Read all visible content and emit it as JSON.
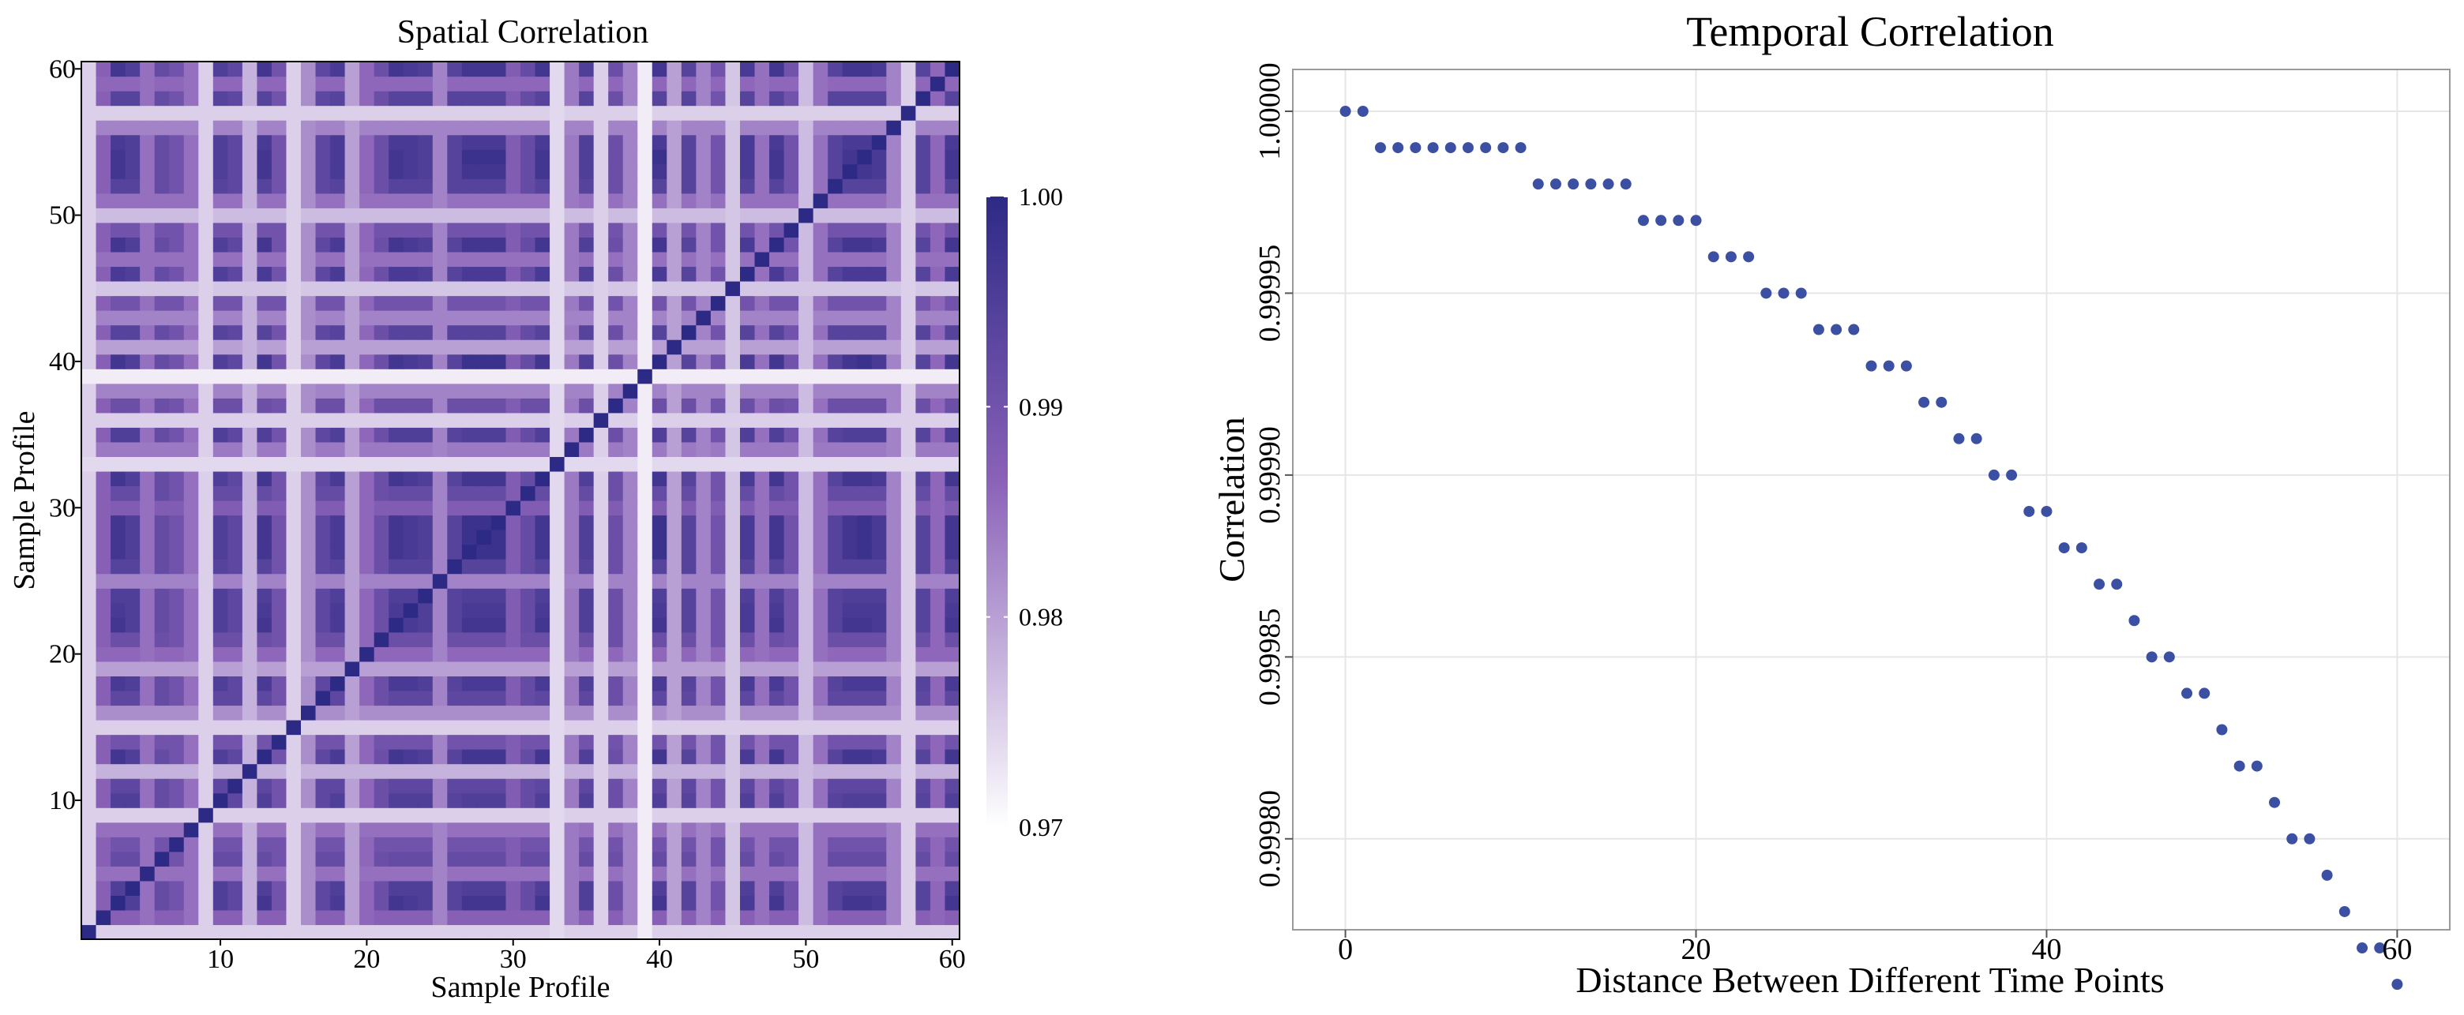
{
  "chart_data": [
    {
      "type": "heatmap",
      "title": "Spatial Correlation",
      "xlabel": "Sample Profile",
      "ylabel": "Sample Profile",
      "x_range": [
        1,
        60
      ],
      "y_range": [
        1,
        60
      ],
      "xticks": [
        10,
        20,
        30,
        40,
        50,
        60
      ],
      "yticks": [
        10,
        20,
        30,
        40,
        50,
        60
      ],
      "n_profiles": 60,
      "profile_values": [
        0.975,
        0.987,
        0.997,
        0.995,
        0.985,
        0.992,
        0.99,
        0.985,
        0.975,
        0.995,
        0.993,
        0.978,
        0.997,
        0.99,
        0.975,
        0.982,
        0.993,
        0.996,
        0.98,
        0.986,
        0.991,
        0.997,
        0.996,
        0.995,
        0.983,
        0.994,
        0.998,
        0.999,
        0.998,
        0.988,
        0.992,
        0.997,
        0.974,
        0.984,
        0.995,
        0.975,
        0.991,
        0.983,
        0.972,
        0.998,
        0.98,
        0.994,
        0.983,
        0.99,
        0.976,
        0.996,
        0.985,
        0.997,
        0.99,
        0.977,
        0.985,
        0.994,
        0.997,
        0.998,
        0.996,
        0.983,
        0.975,
        0.994,
        0.986,
        0.997
      ],
      "colorbar": {
        "min": 0.97,
        "max": 1.0,
        "ticks": [
          "0.97",
          "0.98",
          "0.99",
          "1.00"
        ],
        "low_color": "#ffffff",
        "mid_color": "#8a62b8",
        "high_color": "#2d2a86"
      },
      "grid": false
    },
    {
      "type": "scatter",
      "title": "Temporal Correlation",
      "xlabel": "Distance Between Different Time Points",
      "ylabel": "Correlation",
      "xlim": [
        -3,
        63
      ],
      "ylim": [
        0.999775,
        1.0000115
      ],
      "xticks": [
        "0",
        "20",
        "40",
        "60"
      ],
      "yticks": [
        "0.99980",
        "0.99985",
        "0.99990",
        "0.99995",
        "1.00000"
      ],
      "x": [
        0,
        1,
        2,
        3,
        4,
        5,
        6,
        7,
        8,
        9,
        10,
        11,
        12,
        13,
        14,
        15,
        16,
        17,
        18,
        19,
        20,
        21,
        22,
        23,
        24,
        25,
        26,
        27,
        28,
        29,
        30,
        31,
        32,
        33,
        34,
        35,
        36,
        37,
        38,
        39,
        40,
        41,
        42,
        43,
        44,
        45,
        46,
        47,
        48,
        49,
        50,
        51,
        52,
        53,
        54,
        55,
        56,
        57,
        58,
        59,
        60
      ],
      "y": [
        1.0,
        1.0,
        0.99999,
        0.99999,
        0.99999,
        0.99999,
        0.99999,
        0.99999,
        0.99999,
        0.99999,
        0.99999,
        0.99998,
        0.99998,
        0.99998,
        0.99998,
        0.99998,
        0.99998,
        0.99997,
        0.99997,
        0.99997,
        0.99997,
        0.99996,
        0.99996,
        0.99996,
        0.99995,
        0.99995,
        0.99995,
        0.99994,
        0.99994,
        0.99994,
        0.99993,
        0.99993,
        0.99993,
        0.99992,
        0.99992,
        0.99991,
        0.99991,
        0.9999,
        0.9999,
        0.99989,
        0.99989,
        0.99988,
        0.99988,
        0.99987,
        0.99987,
        0.99986,
        0.99985,
        0.99985,
        0.99984,
        0.99984,
        0.99983,
        0.99982,
        0.99982,
        0.99981,
        0.9998,
        0.9998,
        0.99979,
        0.99978,
        0.99977,
        0.99977,
        0.99976
      ],
      "point_color": "#3b4fa3",
      "grid": true
    }
  ]
}
